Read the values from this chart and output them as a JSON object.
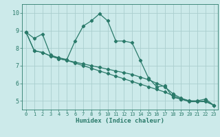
{
  "xlabel": "Humidex (Indice chaleur)",
  "background_color": "#cceaea",
  "grid_color": "#aacece",
  "line_color": "#2a7a6a",
  "xlim": [
    -0.5,
    23.5
  ],
  "ylim": [
    4.5,
    10.5
  ],
  "yticks": [
    5,
    6,
    7,
    8,
    9,
    10
  ],
  "xticks": [
    0,
    1,
    2,
    3,
    4,
    5,
    6,
    7,
    8,
    9,
    10,
    11,
    12,
    13,
    14,
    15,
    16,
    17,
    18,
    19,
    20,
    21,
    22,
    23
  ],
  "line1_x": [
    0,
    1,
    2,
    3,
    4,
    5,
    6,
    7,
    8,
    9,
    10,
    11,
    12,
    13,
    14,
    15,
    16,
    17,
    18,
    19,
    20,
    21,
    22,
    23
  ],
  "line1_y": [
    8.9,
    8.55,
    8.8,
    7.6,
    7.45,
    7.35,
    8.4,
    9.25,
    9.55,
    9.95,
    9.55,
    8.4,
    8.4,
    8.3,
    7.3,
    6.3,
    5.8,
    5.85,
    5.2,
    5.1,
    5.0,
    5.0,
    5.1,
    4.75
  ],
  "line2_x": [
    0,
    1,
    2,
    3,
    4,
    5,
    6,
    7,
    8,
    9,
    10,
    11,
    12,
    13,
    14,
    15,
    16,
    17,
    18,
    19,
    20,
    21,
    22,
    23
  ],
  "line2_y": [
    8.9,
    7.85,
    7.75,
    7.55,
    7.4,
    7.3,
    7.2,
    7.1,
    7.0,
    6.9,
    6.8,
    6.7,
    6.6,
    6.5,
    6.35,
    6.2,
    6.0,
    5.8,
    5.4,
    5.15,
    5.0,
    4.95,
    4.95,
    4.75
  ],
  "line3_x": [
    0,
    1,
    2,
    3,
    4,
    5,
    6,
    7,
    8,
    9,
    10,
    11,
    12,
    13,
    14,
    15,
    16,
    17,
    18,
    19,
    20,
    21,
    22,
    23
  ],
  "line3_y": [
    8.9,
    7.85,
    7.75,
    7.55,
    7.4,
    7.3,
    7.15,
    7.0,
    6.85,
    6.7,
    6.55,
    6.4,
    6.25,
    6.1,
    5.95,
    5.8,
    5.65,
    5.5,
    5.3,
    5.1,
    4.95,
    4.95,
    5.0,
    4.75
  ]
}
